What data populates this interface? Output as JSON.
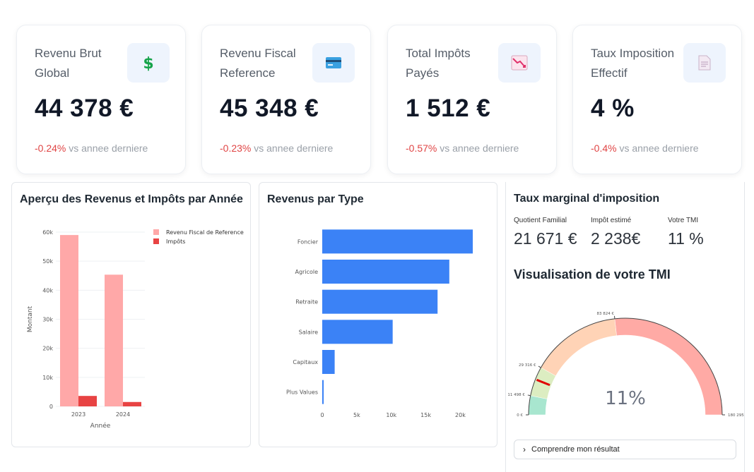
{
  "kpis": [
    {
      "label": "Revenu Brut Global",
      "value": "44 378 €",
      "delta": "-0.24%",
      "delta_suffix": " vs annee derniere",
      "icon": "dollar-icon"
    },
    {
      "label": "Revenu Fiscal Reference",
      "value": "45 348 €",
      "delta": "-0.23%",
      "delta_suffix": " vs annee derniere",
      "icon": "credit-card-icon"
    },
    {
      "label": "Total Impôts Payés",
      "value": "1 512 €",
      "delta": "-0.57%",
      "delta_suffix": " vs annee derniere",
      "icon": "chart-decreasing-icon"
    },
    {
      "label": "Taux Imposition Effectif",
      "value": "4 %",
      "delta": "-0.4%",
      "delta_suffix": " vs annee derniere",
      "icon": "document-icon"
    }
  ],
  "colors": {
    "negative": "#e04444",
    "bar_blue": "#3b82f6",
    "rfr_bar": "#ffa8a8",
    "tax_bar": "#e84343"
  },
  "panels": {
    "overview_title": "Aperçu des Revenus et Impôts par Année",
    "types_title": "Revenus par Type",
    "tmi_title": "Taux marginal d'imposition"
  },
  "tmi": {
    "quotient_label": "Quotient Familial",
    "quotient_value": "21 671 €",
    "impot_label": "Impôt estimé",
    "impot_value": "2 238€",
    "tmi_label": "Votre TMI",
    "tmi_value": "11 %",
    "viz_title": "Visualisation de votre TMI",
    "expander_label": "Comprendre mon résultat"
  },
  "chart_data": [
    {
      "type": "bar",
      "title": "Aperçu des Revenus et Impôts par Année",
      "categories": [
        "2023",
        "2024"
      ],
      "series": [
        {
          "name": "Revenu Fiscal de Reference",
          "values": [
            59000,
            45348
          ]
        },
        {
          "name": "Impôts",
          "values": [
            3600,
            1512
          ]
        }
      ],
      "xlabel": "Année",
      "ylabel": "Montant",
      "ylim": [
        0,
        60000
      ],
      "yticks": [
        "0",
        "10k",
        "20k",
        "30k",
        "40k",
        "50k",
        "60k"
      ],
      "legend": "top-right"
    },
    {
      "type": "bar",
      "orientation": "horizontal",
      "title": "Revenus par Type",
      "categories": [
        "Foncier",
        "Agricole",
        "Retraite",
        "Salaire",
        "Capitaux",
        "Plus Values"
      ],
      "values": [
        21800,
        18400,
        16700,
        10200,
        1800,
        200
      ],
      "xlim": [
        0,
        22000
      ],
      "xticks": [
        "0",
        "5k",
        "10k",
        "15k",
        "20k"
      ]
    },
    {
      "type": "gauge",
      "title": "Visualisation de votre TMI",
      "value": 11,
      "value_label": "11%",
      "range": [
        0,
        180295
      ],
      "thresholds": [
        {
          "label": "0 €",
          "value": 0
        },
        {
          "label": "11 498 €",
          "value": 11498
        },
        {
          "label": "29 316 €",
          "value": 29316
        },
        {
          "label": "83 824 €",
          "value": 83824
        },
        {
          "label": "180 295",
          "value": 180295
        }
      ],
      "band_colors": [
        "#a8e6cf",
        "#dcedc1",
        "#ffd3b6",
        "#ffaaa5",
        "#ff8b94"
      ]
    }
  ]
}
